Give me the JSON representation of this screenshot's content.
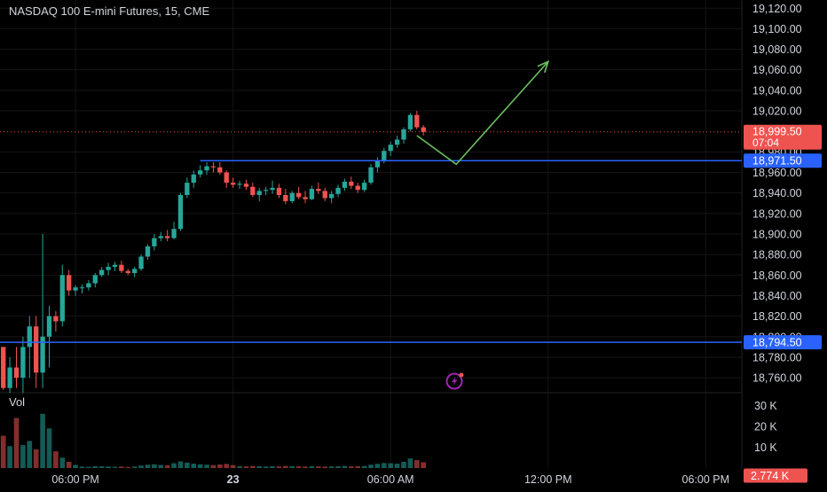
{
  "header": {
    "title": "NASDAQ 100 E-mini Futures, 15, CME"
  },
  "volume_label": "Vol",
  "colors": {
    "background": "#000000",
    "up": "#26a69a",
    "down": "#ef5350",
    "level_line": "#2962ff",
    "projection": "#6abf5e",
    "last_price_line": "#ef5350",
    "grid": "#151515",
    "axis_text": "#d1d4dc",
    "alert_icon": "#9c27b0"
  },
  "price_axis": {
    "ticks": [
      "19,120.00",
      "19,100.00",
      "19,080.00",
      "19,060.00",
      "19,040.00",
      "19,020.00",
      "18,980.00",
      "18,960.00",
      "18,940.00",
      "18,920.00",
      "18,900.00",
      "18,880.00",
      "18,860.00",
      "18,840.00",
      "18,820.00",
      "18,800.00",
      "18,780.00",
      "18,760.00"
    ]
  },
  "time_axis": {
    "labels": [
      {
        "text": "06:00 PM",
        "bar": 11
      },
      {
        "text": "23",
        "bar": 35
      },
      {
        "text": "06:00 AM",
        "bar": 59
      },
      {
        "text": "12:00 PM",
        "bar": 83
      },
      {
        "text": "06:00 PM",
        "bar": 107
      }
    ]
  },
  "volume_axis": {
    "ticks": [
      "30 K",
      "20 K",
      "10 K"
    ]
  },
  "price_labels": {
    "last_price": "18,999.50",
    "countdown": "07:04",
    "level_upper": "18,971.50",
    "level_lower": "18,794.50",
    "volume_last": "2.774 K"
  },
  "icons": {
    "alert": "lightning-alert-icon"
  },
  "chart_data": {
    "type": "candlestick",
    "title": "NASDAQ 100 E-mini Futures, 15, CME",
    "interval": "15",
    "exchange": "CME",
    "ylim": [
      18748,
      19128
    ],
    "volume_ylim": [
      0,
      34000
    ],
    "bars_in_view": 113,
    "last_price": 18999.5,
    "horizontal_levels": [
      {
        "price": 18971.5,
        "from_bar": 30
      },
      {
        "price": 18794.5,
        "from_bar": 0
      }
    ],
    "projection_path": [
      {
        "bar": 63,
        "price": 18996
      },
      {
        "bar": 69,
        "price": 18968
      },
      {
        "bar": 83,
        "price": 19068
      }
    ],
    "candles": [
      {
        "o": 18790,
        "h": 18790,
        "l": 18748,
        "c": 18750,
        "v": 15500
      },
      {
        "o": 18750,
        "h": 18780,
        "l": 18745,
        "c": 18770,
        "v": 10500
      },
      {
        "o": 18770,
        "h": 18790,
        "l": 18750,
        "c": 18760,
        "v": 24000
      },
      {
        "o": 18760,
        "h": 18800,
        "l": 18745,
        "c": 18790,
        "v": 11000
      },
      {
        "o": 18790,
        "h": 18820,
        "l": 18760,
        "c": 18810,
        "v": 13000
      },
      {
        "o": 18810,
        "h": 18820,
        "l": 18750,
        "c": 18765,
        "v": 9000
      },
      {
        "o": 18765,
        "h": 18900,
        "l": 18750,
        "c": 18800,
        "v": 26000
      },
      {
        "o": 18800,
        "h": 18830,
        "l": 18770,
        "c": 18820,
        "v": 19000
      },
      {
        "o": 18820,
        "h": 18825,
        "l": 18805,
        "c": 18815,
        "v": 8000
      },
      {
        "o": 18815,
        "h": 18870,
        "l": 18810,
        "c": 18860,
        "v": 5000
      },
      {
        "o": 18860,
        "h": 18865,
        "l": 18840,
        "c": 18845,
        "v": 3000
      },
      {
        "o": 18845,
        "h": 18850,
        "l": 18840,
        "c": 18848,
        "v": 1500
      },
      {
        "o": 18848,
        "h": 18851,
        "l": 18842,
        "c": 18848,
        "v": 700
      },
      {
        "o": 18848,
        "h": 18855,
        "l": 18845,
        "c": 18852,
        "v": 600
      },
      {
        "o": 18852,
        "h": 18862,
        "l": 18848,
        "c": 18860,
        "v": 900
      },
      {
        "o": 18860,
        "h": 18868,
        "l": 18858,
        "c": 18865,
        "v": 800
      },
      {
        "o": 18865,
        "h": 18872,
        "l": 18860,
        "c": 18868,
        "v": 750
      },
      {
        "o": 18868,
        "h": 18873,
        "l": 18864,
        "c": 18870,
        "v": 600
      },
      {
        "o": 18870,
        "h": 18874,
        "l": 18862,
        "c": 18864,
        "v": 700
      },
      {
        "o": 18864,
        "h": 18866,
        "l": 18860,
        "c": 18862,
        "v": 500
      },
      {
        "o": 18862,
        "h": 18868,
        "l": 18858,
        "c": 18866,
        "v": 700
      },
      {
        "o": 18866,
        "h": 18880,
        "l": 18864,
        "c": 18878,
        "v": 1200
      },
      {
        "o": 18878,
        "h": 18890,
        "l": 18875,
        "c": 18888,
        "v": 1600
      },
      {
        "o": 18888,
        "h": 18900,
        "l": 18884,
        "c": 18896,
        "v": 1800
      },
      {
        "o": 18896,
        "h": 18902,
        "l": 18893,
        "c": 18898,
        "v": 1500
      },
      {
        "o": 18898,
        "h": 18904,
        "l": 18893,
        "c": 18896,
        "v": 1300
      },
      {
        "o": 18896,
        "h": 18912,
        "l": 18895,
        "c": 18905,
        "v": 2300
      },
      {
        "o": 18905,
        "h": 18940,
        "l": 18903,
        "c": 18938,
        "v": 3200
      },
      {
        "o": 18938,
        "h": 18955,
        "l": 18935,
        "c": 18950,
        "v": 2600
      },
      {
        "o": 18950,
        "h": 18962,
        "l": 18945,
        "c": 18958,
        "v": 2100
      },
      {
        "o": 18958,
        "h": 18967,
        "l": 18955,
        "c": 18962,
        "v": 1800
      },
      {
        "o": 18962,
        "h": 18970,
        "l": 18958,
        "c": 18966,
        "v": 1600
      },
      {
        "o": 18966,
        "h": 18970,
        "l": 18960,
        "c": 18965,
        "v": 1400
      },
      {
        "o": 18965,
        "h": 18970,
        "l": 18958,
        "c": 18960,
        "v": 1700
      },
      {
        "o": 18960,
        "h": 18962,
        "l": 18945,
        "c": 18950,
        "v": 2000
      },
      {
        "o": 18950,
        "h": 18955,
        "l": 18945,
        "c": 18948,
        "v": 1400
      },
      {
        "o": 18948,
        "h": 18952,
        "l": 18944,
        "c": 18949,
        "v": 900
      },
      {
        "o": 18949,
        "h": 18953,
        "l": 18943,
        "c": 18946,
        "v": 800
      },
      {
        "o": 18946,
        "h": 18950,
        "l": 18936,
        "c": 18938,
        "v": 1000
      },
      {
        "o": 18938,
        "h": 18945,
        "l": 18932,
        "c": 18942,
        "v": 900
      },
      {
        "o": 18942,
        "h": 18946,
        "l": 18938,
        "c": 18943,
        "v": 700
      },
      {
        "o": 18943,
        "h": 18952,
        "l": 18939,
        "c": 18945,
        "v": 900
      },
      {
        "o": 18945,
        "h": 18949,
        "l": 18935,
        "c": 18938,
        "v": 800
      },
      {
        "o": 18938,
        "h": 18944,
        "l": 18929,
        "c": 18932,
        "v": 1000
      },
      {
        "o": 18932,
        "h": 18942,
        "l": 18930,
        "c": 18940,
        "v": 900
      },
      {
        "o": 18940,
        "h": 18946,
        "l": 18934,
        "c": 18936,
        "v": 800
      },
      {
        "o": 18936,
        "h": 18942,
        "l": 18930,
        "c": 18934,
        "v": 700
      },
      {
        "o": 18934,
        "h": 18947,
        "l": 18933,
        "c": 18944,
        "v": 900
      },
      {
        "o": 18944,
        "h": 18950,
        "l": 18939,
        "c": 18942,
        "v": 800
      },
      {
        "o": 18942,
        "h": 18945,
        "l": 18932,
        "c": 18935,
        "v": 700
      },
      {
        "o": 18935,
        "h": 18942,
        "l": 18930,
        "c": 18939,
        "v": 800
      },
      {
        "o": 18939,
        "h": 18948,
        "l": 18936,
        "c": 18945,
        "v": 900
      },
      {
        "o": 18945,
        "h": 18954,
        "l": 18942,
        "c": 18951,
        "v": 1000
      },
      {
        "o": 18951,
        "h": 18956,
        "l": 18944,
        "c": 18947,
        "v": 800
      },
      {
        "o": 18947,
        "h": 18950,
        "l": 18940,
        "c": 18943,
        "v": 900
      },
      {
        "o": 18943,
        "h": 18953,
        "l": 18941,
        "c": 18950,
        "v": 1000
      },
      {
        "o": 18950,
        "h": 18968,
        "l": 18948,
        "c": 18965,
        "v": 1600
      },
      {
        "o": 18965,
        "h": 18975,
        "l": 18960,
        "c": 18972,
        "v": 2000
      },
      {
        "o": 18972,
        "h": 18984,
        "l": 18969,
        "c": 18981,
        "v": 2400
      },
      {
        "o": 18981,
        "h": 18990,
        "l": 18976,
        "c": 18987,
        "v": 2300
      },
      {
        "o": 18987,
        "h": 18996,
        "l": 18984,
        "c": 18992,
        "v": 2100
      },
      {
        "o": 18992,
        "h": 19004,
        "l": 18988,
        "c": 19002,
        "v": 3000
      },
      {
        "o": 19002,
        "h": 19018,
        "l": 19000,
        "c": 19016,
        "v": 4600
      },
      {
        "o": 19016,
        "h": 19020,
        "l": 19002,
        "c": 19004,
        "v": 3800
      },
      {
        "o": 19004,
        "h": 19006,
        "l": 18996,
        "c": 18999.5,
        "v": 2774
      }
    ]
  }
}
